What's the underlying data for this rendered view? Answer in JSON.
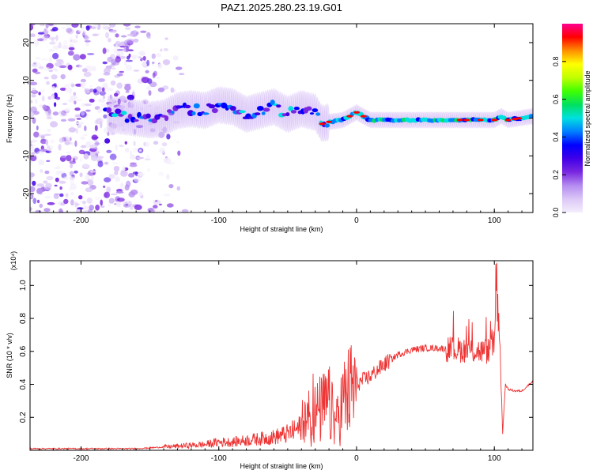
{
  "title": "PAZ1.2025.280.23.19.G01",
  "chart_data": [
    {
      "type": "heatmap",
      "title": "",
      "xlabel": "Height of straight line (km)",
      "ylabel": "Frequency (Hz)",
      "xlim": [
        -237,
        128
      ],
      "ylim": [
        -25,
        25
      ],
      "xticks": [
        -200,
        -100,
        0,
        100
      ],
      "yticks": [
        -20,
        -10,
        0,
        10,
        20
      ],
      "colorbar": {
        "label": "Normalized spectral amplitude",
        "range": [
          0,
          1
        ],
        "ticks": [
          "0.0",
          "0.2",
          "0.4",
          "0.6",
          "0.8"
        ],
        "colors": [
          "#f4eefc",
          "#dcc8f7",
          "#b48cf0",
          "#7a28e0",
          "#4000e8",
          "#0000ff",
          "#0080ff",
          "#00e0e0",
          "#00e060",
          "#40ff00",
          "#c0ff00",
          "#ffff00",
          "#ff9000",
          "#ff0000",
          "#ff0090"
        ]
      },
      "ridge": {
        "height_km": [
          -180,
          -170,
          -160,
          -150,
          -140,
          -130,
          -120,
          -110,
          -100,
          -90,
          -80,
          -70,
          -60,
          -50,
          -40,
          -30,
          -25,
          -20,
          -10,
          -5,
          0,
          5,
          10,
          20,
          40,
          60,
          80,
          100,
          105,
          110,
          128
        ],
        "frequency_hz": [
          1.0,
          0.5,
          0.0,
          -0.5,
          0.0,
          2.0,
          2.5,
          2.0,
          3.5,
          3.0,
          1.0,
          2.0,
          3.0,
          1.0,
          2.5,
          1.5,
          -1.5,
          -1.0,
          -0.5,
          0.5,
          1.5,
          0.5,
          -0.5,
          -0.5,
          -0.5,
          -0.5,
          -0.5,
          -0.5,
          0.5,
          -0.5,
          0.5
        ]
      },
      "scatter_region_km": [
        -237,
        -120
      ]
    },
    {
      "type": "line",
      "title": "",
      "xlabel": "Height of straight line (km)",
      "ylabel": "SNR (10 * v/v)",
      "scale_label": "(x10⁴)",
      "xlim": [
        -237,
        128
      ],
      "ylim": [
        0,
        1.15
      ],
      "xticks": [
        -200,
        -100,
        0,
        100
      ],
      "yticks": [
        0.2,
        0.4,
        0.6,
        0.8,
        1.0
      ],
      "yticklabels": [
        "0.2",
        "0.4",
        "0.6",
        "0.8",
        "1.0"
      ],
      "series": [
        {
          "name": "SNR",
          "color": "#ee3333",
          "x": [
            -237,
            -200,
            -160,
            -150,
            -140,
            -130,
            -120,
            -110,
            -100,
            -90,
            -80,
            -70,
            -60,
            -50,
            -40,
            -30,
            -20,
            -15,
            -10,
            0,
            10,
            20,
            30,
            40,
            50,
            60,
            70,
            80,
            90,
            95,
            100,
            102,
            104,
            106,
            108,
            110,
            115,
            120,
            128
          ],
          "y": [
            0.01,
            0.01,
            0.01,
            0.015,
            0.02,
            0.025,
            0.03,
            0.035,
            0.05,
            0.05,
            0.06,
            0.07,
            0.08,
            0.1,
            0.14,
            0.22,
            0.28,
            0.15,
            0.3,
            0.4,
            0.45,
            0.52,
            0.58,
            0.61,
            0.62,
            0.62,
            0.61,
            0.61,
            0.6,
            0.6,
            0.65,
            0.95,
            0.7,
            0.1,
            0.4,
            0.37,
            0.36,
            0.36,
            0.42
          ]
        }
      ]
    }
  ]
}
